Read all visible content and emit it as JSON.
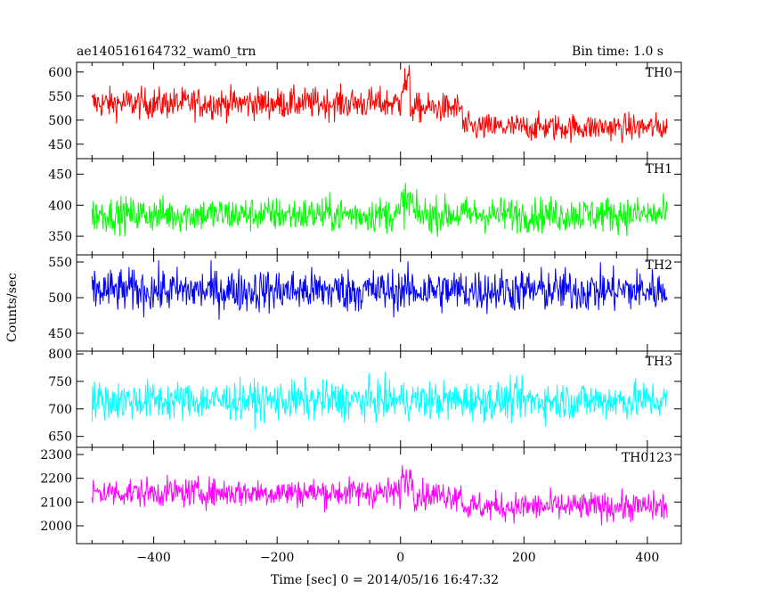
{
  "header": {
    "title": "ae140516164732_wam0_trn",
    "bin_time": "Bin time: 1.0 s"
  },
  "chart_data": {
    "type": "line",
    "title": "ae140516164732_wam0_trn",
    "subtitle": "Bin time: 1.0 s",
    "xlabel": "Time [sec] 0 = 2014/05/16 16:47:32",
    "ylabel": "Counts/sec",
    "xlim": [
      -525,
      455
    ],
    "x_ticks": [
      -400,
      -200,
      0,
      200,
      400
    ],
    "x_range": [
      -500,
      432
    ],
    "bin": 1.0,
    "series": [
      {
        "name": "TH0",
        "color": "#ff0000",
        "ylim": [
          420,
          620
        ],
        "y_ticks": [
          450,
          500,
          550,
          600
        ],
        "segments": [
          {
            "x": [
              -500,
              0
            ],
            "mean": 535,
            "amp": 32
          },
          {
            "x": [
              0,
              15
            ],
            "mean": 575,
            "amp": 40
          },
          {
            "x": [
              15,
              100
            ],
            "mean": 525,
            "amp": 30
          },
          {
            "x": [
              100,
              432
            ],
            "mean": 485,
            "amp": 28
          }
        ]
      },
      {
        "name": "TH1",
        "color": "#00ff00",
        "ylim": [
          320,
          475
        ],
        "y_ticks": [
          350,
          400,
          450
        ],
        "segments": [
          {
            "x": [
              -500,
              0
            ],
            "mean": 385,
            "amp": 28
          },
          {
            "x": [
              0,
              20
            ],
            "mean": 405,
            "amp": 34
          },
          {
            "x": [
              20,
              432
            ],
            "mean": 385,
            "amp": 28
          }
        ]
      },
      {
        "name": "TH2",
        "color": "#0000ff",
        "ylim": [
          425,
          560
        ],
        "y_ticks": [
          450,
          500,
          550
        ],
        "segments": [
          {
            "x": [
              -500,
              432
            ],
            "mean": 510,
            "amp": 30
          }
        ]
      },
      {
        "name": "TH3",
        "color": "#00ffff",
        "ylim": [
          630,
          805
        ],
        "y_ticks": [
          650,
          700,
          750,
          800
        ],
        "segments": [
          {
            "x": [
              -500,
              432
            ],
            "mean": 715,
            "amp": 35
          }
        ]
      },
      {
        "name": "TH0123",
        "color": "#ff00ff",
        "ylim": [
          1925,
          2330
        ],
        "y_ticks": [
          2000,
          2100,
          2200,
          2300
        ],
        "segments": [
          {
            "x": [
              -500,
              0
            ],
            "mean": 2140,
            "amp": 60
          },
          {
            "x": [
              0,
              20
            ],
            "mean": 2200,
            "amp": 70
          },
          {
            "x": [
              20,
              100
            ],
            "mean": 2130,
            "amp": 60
          },
          {
            "x": [
              100,
              432
            ],
            "mean": 2080,
            "amp": 60
          }
        ]
      }
    ],
    "grid": false,
    "legend": "none"
  }
}
